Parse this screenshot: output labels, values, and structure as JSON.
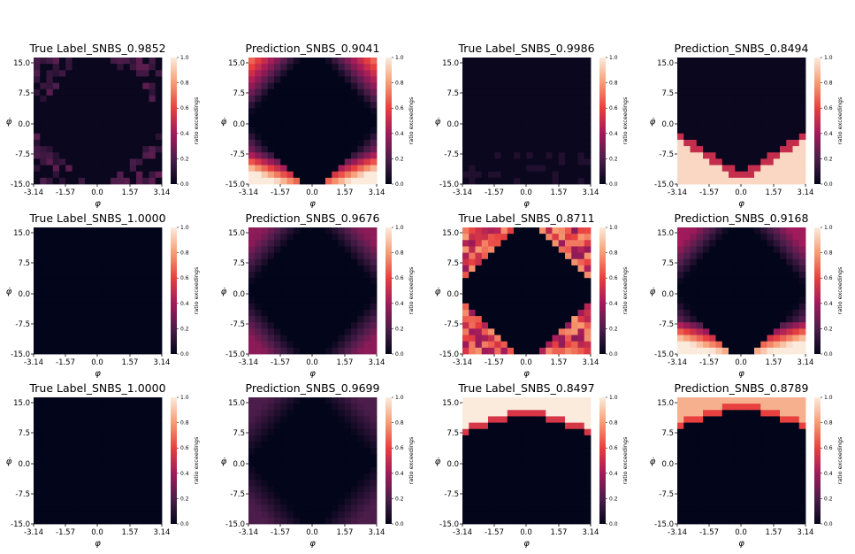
{
  "chart_data": {
    "type": "heatmap",
    "grid": false,
    "xlabel": "φ",
    "ylabel": "φ̇",
    "xticks": [
      "-3.14",
      "-1.57",
      "0.0",
      "1.57",
      "3.14"
    ],
    "yticks": [
      "15.0",
      "7.5",
      "0.0",
      "-7.5",
      "-15.0"
    ],
    "xlim": [
      -3.14,
      3.14
    ],
    "ylim": [
      -15.0,
      15.0
    ],
    "colorbar": {
      "label": "ratio exceedings",
      "ticks": [
        "1.0",
        "0.8",
        "0.6",
        "0.4",
        "0.2",
        "0.0"
      ],
      "range": [
        0.0,
        1.0
      ]
    },
    "panels": [
      {
        "title": "True Label_SNBS_0.9852",
        "pattern": "sparse"
      },
      {
        "title": "Prediction_SNBS_0.9041",
        "pattern": "diamond_bottom"
      },
      {
        "title": "True Label_SNBS_0.9986",
        "pattern": "near_zero"
      },
      {
        "title": "Prediction_SNBS_0.8494",
        "pattern": "bottom_v"
      },
      {
        "title": "True Label_SNBS_1.0000",
        "pattern": "zero"
      },
      {
        "title": "Prediction_SNBS_0.9676",
        "pattern": "diamond_faint"
      },
      {
        "title": "True Label_SNBS_0.8711",
        "pattern": "diamond_noisy"
      },
      {
        "title": "Prediction_SNBS_0.9168",
        "pattern": "diamond_bottom_strong"
      },
      {
        "title": "True Label_SNBS_1.0000",
        "pattern": "zero"
      },
      {
        "title": "Prediction_SNBS_0.9699",
        "pattern": "diamond_very_faint"
      },
      {
        "title": "True Label_SNBS_0.8497",
        "pattern": "top_cap"
      },
      {
        "title": "Prediction_SNBS_0.8789",
        "pattern": "top_cap_soft"
      }
    ]
  }
}
